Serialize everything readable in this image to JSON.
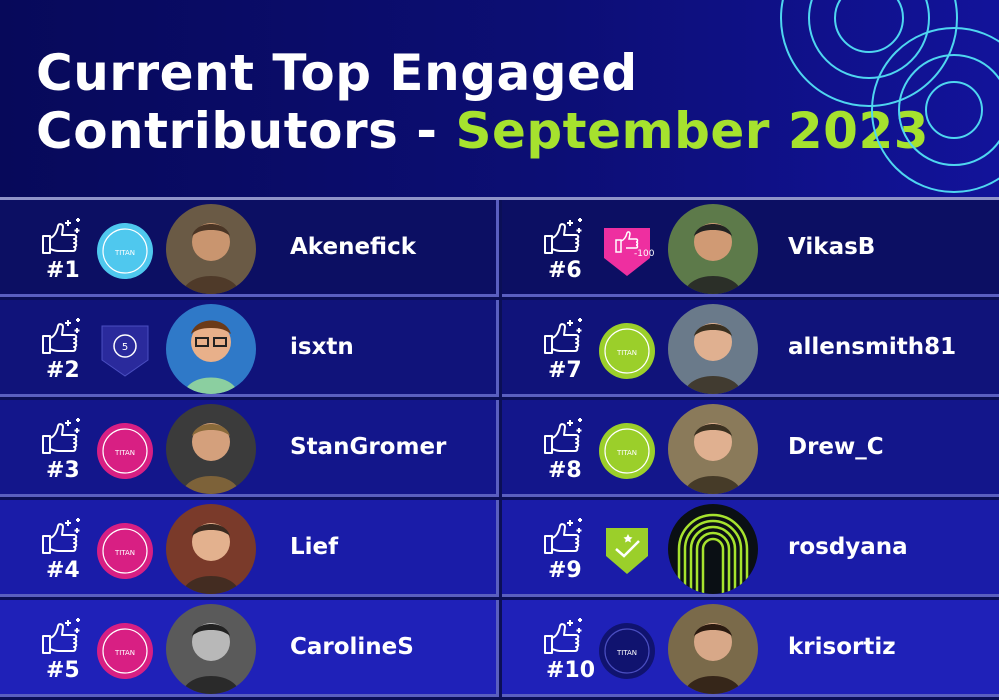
{
  "header": {
    "title_line1": "Current Top Engaged",
    "title_line2_prefix": "Contributors - ",
    "title_line2_accent": "September 2023",
    "accent_color": "#a6e22e",
    "bg_color": "#0b0f56"
  },
  "contributors": [
    {
      "rank": "#1",
      "name": "Akenefick",
      "badge": "titan-cyan",
      "badge_text": "TITAN",
      "avatar_icon": "person-photo"
    },
    {
      "rank": "#2",
      "name": "isxtn",
      "badge": "speech-5",
      "badge_text": "5",
      "avatar_icon": "cartoon-avatar"
    },
    {
      "rank": "#3",
      "name": "StanGromer",
      "badge": "titan-pink",
      "badge_text": "TITAN",
      "avatar_icon": "person-photo"
    },
    {
      "rank": "#4",
      "name": "Lief",
      "badge": "titan-pink",
      "badge_text": "TITAN",
      "avatar_icon": "person-photo"
    },
    {
      "rank": "#5",
      "name": "CarolineS",
      "badge": "titan-pink",
      "badge_text": "TITAN",
      "avatar_icon": "person-photo"
    },
    {
      "rank": "#6",
      "name": "VikasB",
      "badge": "likes-100",
      "badge_text": "100",
      "avatar_icon": "person-photo"
    },
    {
      "rank": "#7",
      "name": "allensmith81",
      "badge": "titan-green",
      "badge_text": "TITAN",
      "avatar_icon": "person-photo"
    },
    {
      "rank": "#8",
      "name": "Drew_C",
      "badge": "titan-green",
      "badge_text": "TITAN",
      "avatar_icon": "person-photo"
    },
    {
      "rank": "#9",
      "name": "rosdyana",
      "badge": "shield-check",
      "badge_text": "",
      "avatar_icon": "concentric-arch-logo"
    },
    {
      "rank": "#10",
      "name": "krisortiz",
      "badge": "titan-navy",
      "badge_text": "TITAN",
      "avatar_icon": "person-photo"
    }
  ]
}
